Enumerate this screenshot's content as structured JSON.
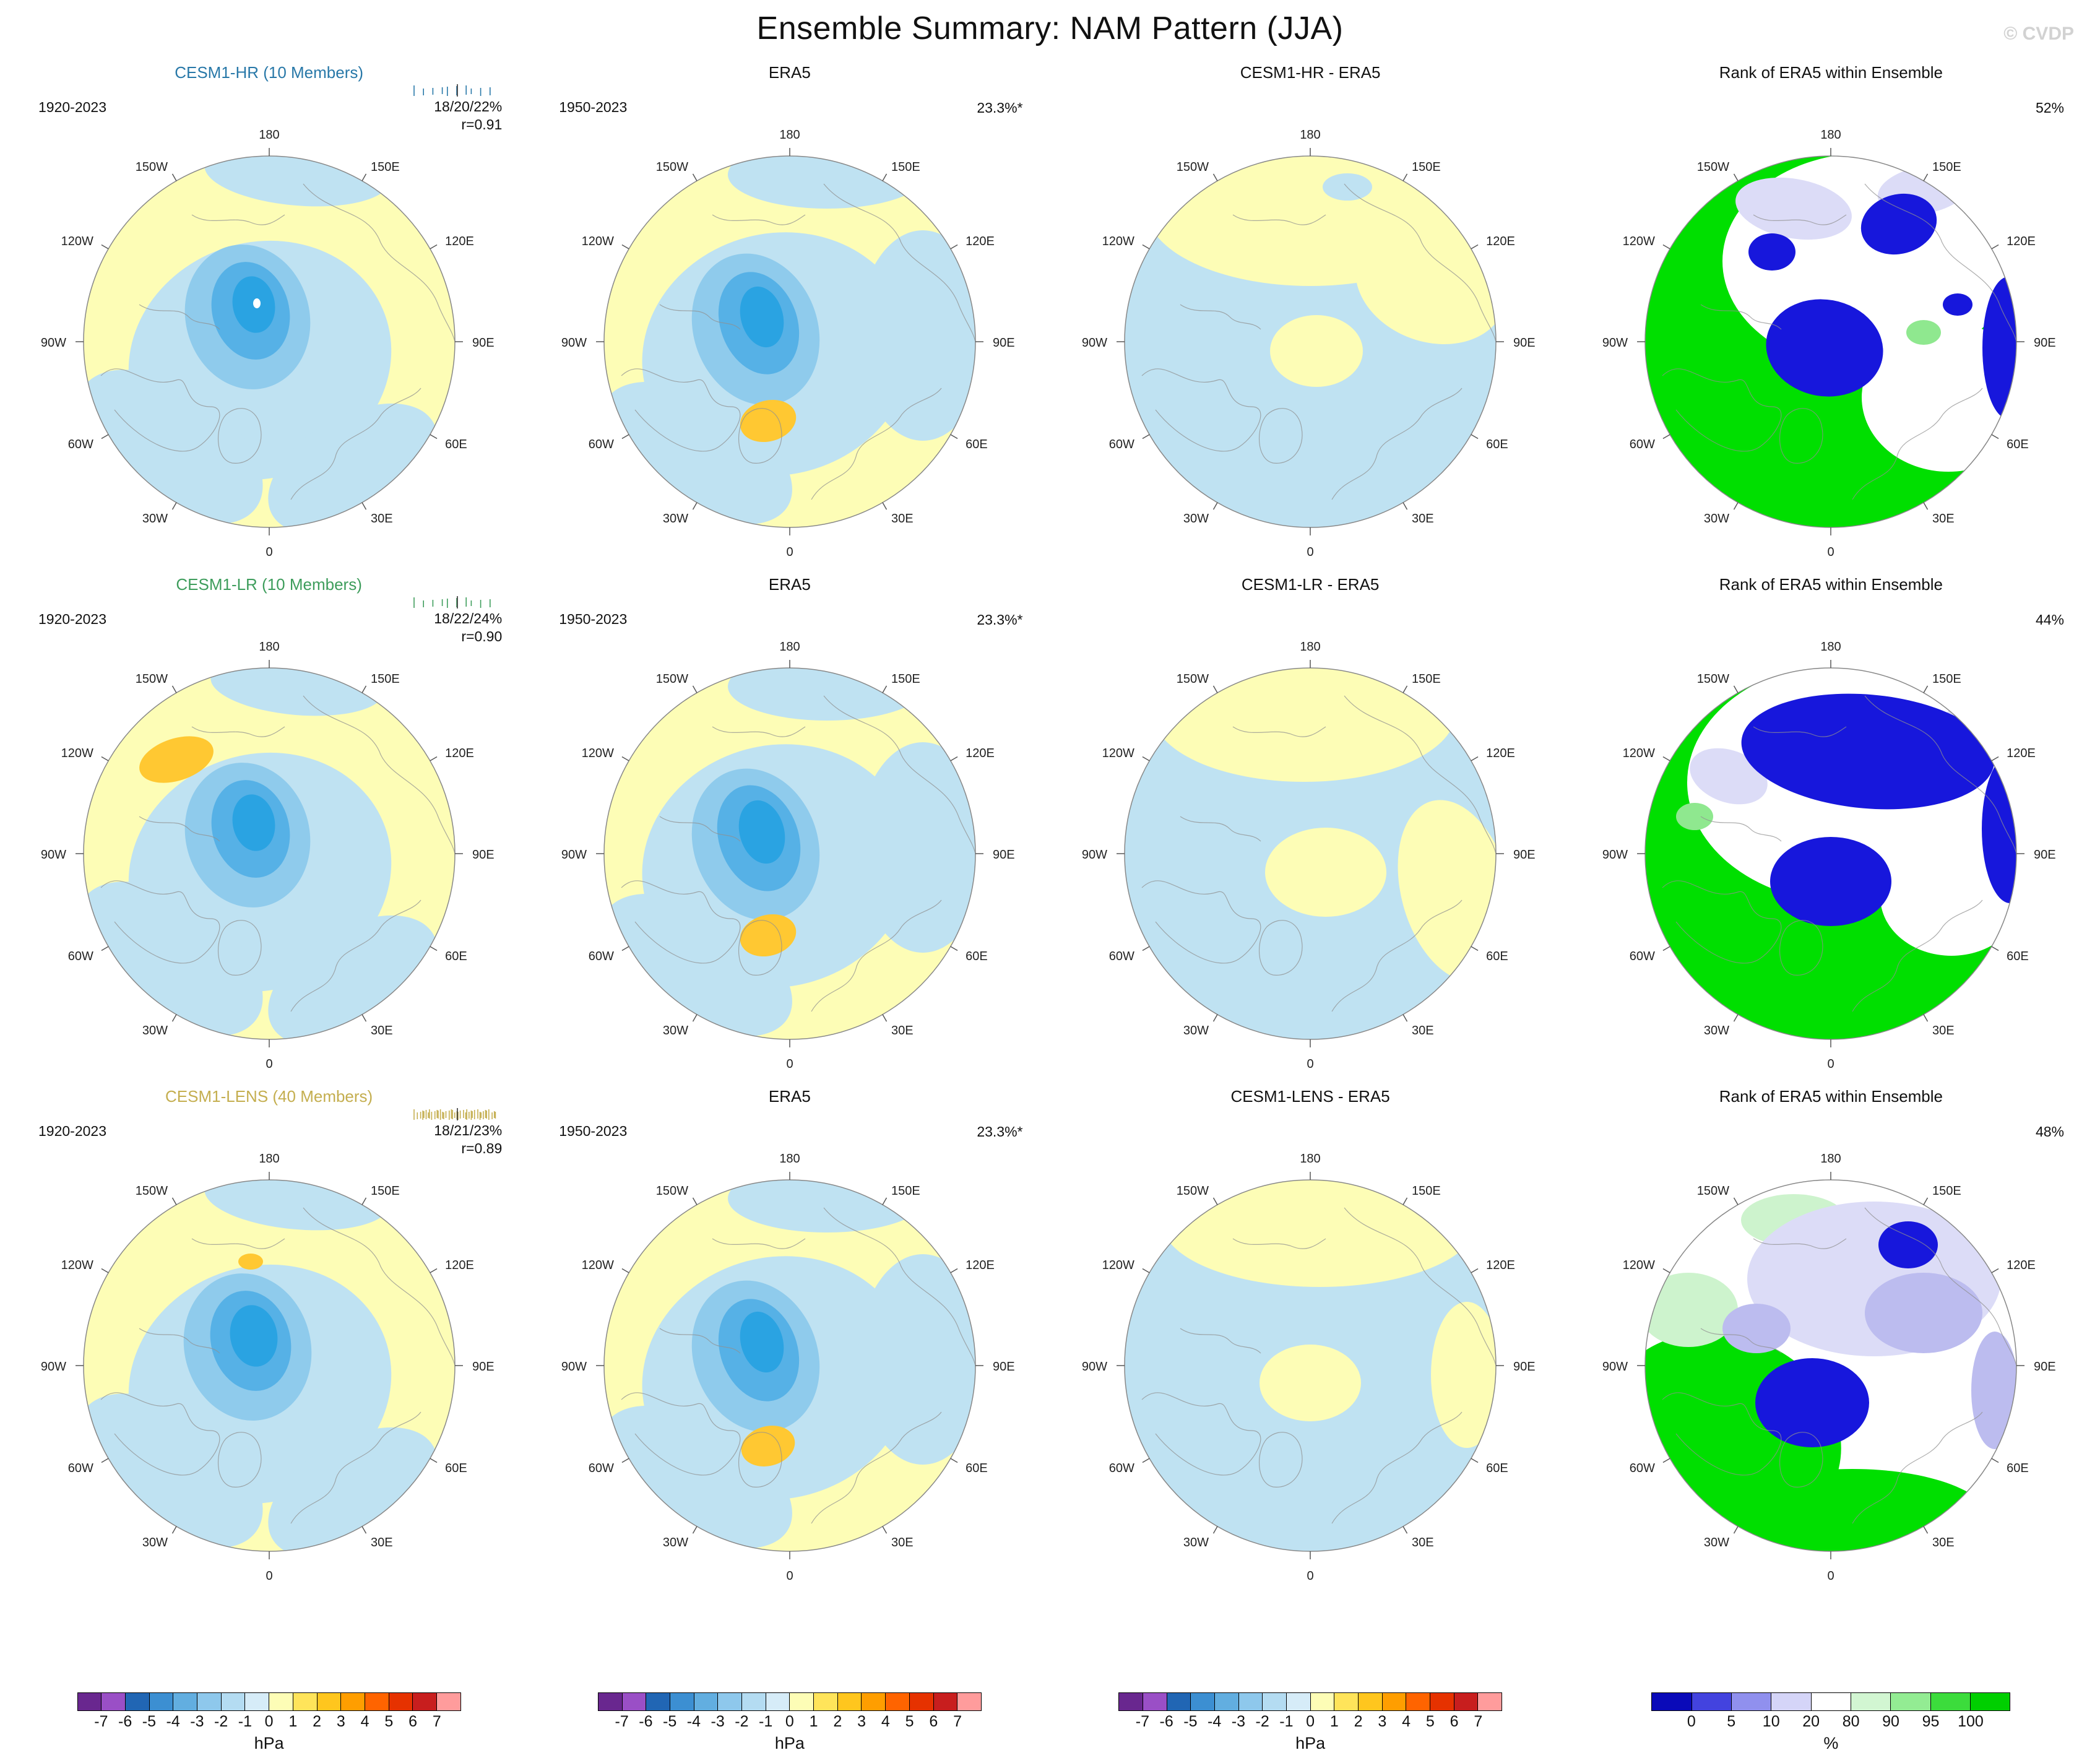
{
  "page": {
    "title": "Ensemble Summary: NAM Pattern (JJA)",
    "watermark": "© CVDP"
  },
  "lon_labels": [
    {
      "angle": 0,
      "label": "180"
    },
    {
      "angle": 30,
      "label": "150E"
    },
    {
      "angle": 60,
      "label": "120E"
    },
    {
      "angle": 90,
      "label": "90E"
    },
    {
      "angle": 120,
      "label": "60E"
    },
    {
      "angle": 150,
      "label": "30E"
    },
    {
      "angle": 180,
      "label": "0"
    },
    {
      "angle": 210,
      "label": "30W"
    },
    {
      "angle": 240,
      "label": "60W"
    },
    {
      "angle": 270,
      "label": "90W"
    },
    {
      "angle": 300,
      "label": "120W"
    },
    {
      "angle": 330,
      "label": "150W"
    }
  ],
  "rows": [
    {
      "model": {
        "title": "CESM1-HR (10 Members)",
        "color": "#2878A8",
        "period": "1920-2023",
        "stats": "18/20/22%",
        "corr": "r=0.91",
        "members": 10
      },
      "era5": {
        "title": "ERA5",
        "period": "1950-2023",
        "variance": "23.3%*"
      },
      "diff": {
        "title": "CESM1-HR - ERA5"
      },
      "rank": {
        "title": "Rank of ERA5 within Ensemble",
        "pct": "52%"
      }
    },
    {
      "model": {
        "title": "CESM1-LR (10 Members)",
        "color": "#3E9D5C",
        "period": "1920-2023",
        "stats": "18/22/24%",
        "corr": "r=0.90",
        "members": 10
      },
      "era5": {
        "title": "ERA5",
        "period": "1950-2023",
        "variance": "23.3%*"
      },
      "diff": {
        "title": "CESM1-LR - ERA5"
      },
      "rank": {
        "title": "Rank of ERA5 within Ensemble",
        "pct": "44%"
      }
    },
    {
      "model": {
        "title": "CESM1-LENS (40 Members)",
        "color": "#C4AE4F",
        "period": "1920-2023",
        "stats": "18/21/23%",
        "corr": "r=0.89",
        "members": 40
      },
      "era5": {
        "title": "ERA5",
        "period": "1950-2023",
        "variance": "23.3%*"
      },
      "diff": {
        "title": "CESM1-LENS - ERA5"
      },
      "rank": {
        "title": "Rank of ERA5 within Ensemble",
        "pct": "48%"
      }
    }
  ],
  "colorbars": {
    "hpa": {
      "unit": "hPa",
      "ticks": [
        "-7",
        "-6",
        "-5",
        "-4",
        "-3",
        "-2",
        "-1",
        "0",
        "1",
        "2",
        "3",
        "4",
        "5",
        "6",
        "7"
      ],
      "colors": [
        "#69278F",
        "#9A4FC6",
        "#2166B4",
        "#3C8FD2",
        "#62AEE0",
        "#8EC8EC",
        "#B4DCF2",
        "#D6ECF8",
        "#FDFDB6",
        "#FFE45A",
        "#FFC61E",
        "#FF9E00",
        "#FF6400",
        "#E63200",
        "#C81E1E",
        "#FF9C9C"
      ]
    },
    "pct": {
      "unit": "%",
      "ticks": [
        "0",
        "5",
        "10",
        "20",
        "80",
        "90",
        "95",
        "100"
      ],
      "colors": [
        "#0A0AB9",
        "#4343DF",
        "#9090EE",
        "#D5D5F8",
        "#FFFFFF",
        "#D2F6D2",
        "#93EC93",
        "#3CDC3C",
        "#00CF00"
      ]
    }
  },
  "chart_data": {
    "type": "heatmap",
    "subtype": "north-polar-stereographic map grid",
    "title": "Ensemble Summary: NAM Pattern (JJA)",
    "grid": {
      "rows": 3,
      "cols": 4
    },
    "column_meaning": [
      "Model ensemble NAM pattern",
      "ERA5 observed NAM pattern",
      "Model minus ERA5 difference",
      "Rank of ERA5 within Ensemble"
    ],
    "value_units": {
      "patterns": "hPa",
      "rank": "%"
    },
    "hpa_levels": [
      -7,
      -6,
      -5,
      -4,
      -3,
      -2,
      -1,
      0,
      1,
      2,
      3,
      4,
      5,
      6,
      7
    ],
    "rank_levels": [
      0,
      5,
      10,
      20,
      80,
      90,
      95,
      100
    ],
    "rows": [
      {
        "model": "CESM1-HR",
        "members": 10,
        "model_period": "1920-2023",
        "era5_period": "1950-2023",
        "member_variance_explained": "18/20/22%",
        "pattern_correlation": "r=0.91",
        "era5_variance_explained": "23.3%*",
        "era5_rank_percent": "52%"
      },
      {
        "model": "CESM1-LR",
        "members": 10,
        "model_period": "1920-2023",
        "era5_period": "1950-2023",
        "member_variance_explained": "18/22/24%",
        "pattern_correlation": "r=0.90",
        "era5_variance_explained": "23.3%*",
        "era5_rank_percent": "44%"
      },
      {
        "model": "CESM1-LENS",
        "members": 40,
        "model_period": "1920-2023",
        "era5_period": "1950-2023",
        "member_variance_explained": "18/21/23%",
        "pattern_correlation": "r=0.89",
        "era5_variance_explained": "23.3%*",
        "era5_rank_percent": "48%"
      }
    ],
    "pattern_description": "Each pattern map shows negative (blue, down to about -4 hPa) sea-level-pressure anomalies centered near the pole/Greenland surrounded by weak positive (pale yellow, ~0-1 hPa) anomalies in midlatitudes; ERA5 shows a small +2 to +3 hPa (orange) center near the North Atlantic/Europe sector. Difference maps are mostly -1 to 0 hPa (light blue) with 0 to 1 hPa (pale yellow) bands near the dateline and pole. Rank maps show large areas >95% (green) with <5% (dark blue) patches near the pole and Siberia."
  }
}
